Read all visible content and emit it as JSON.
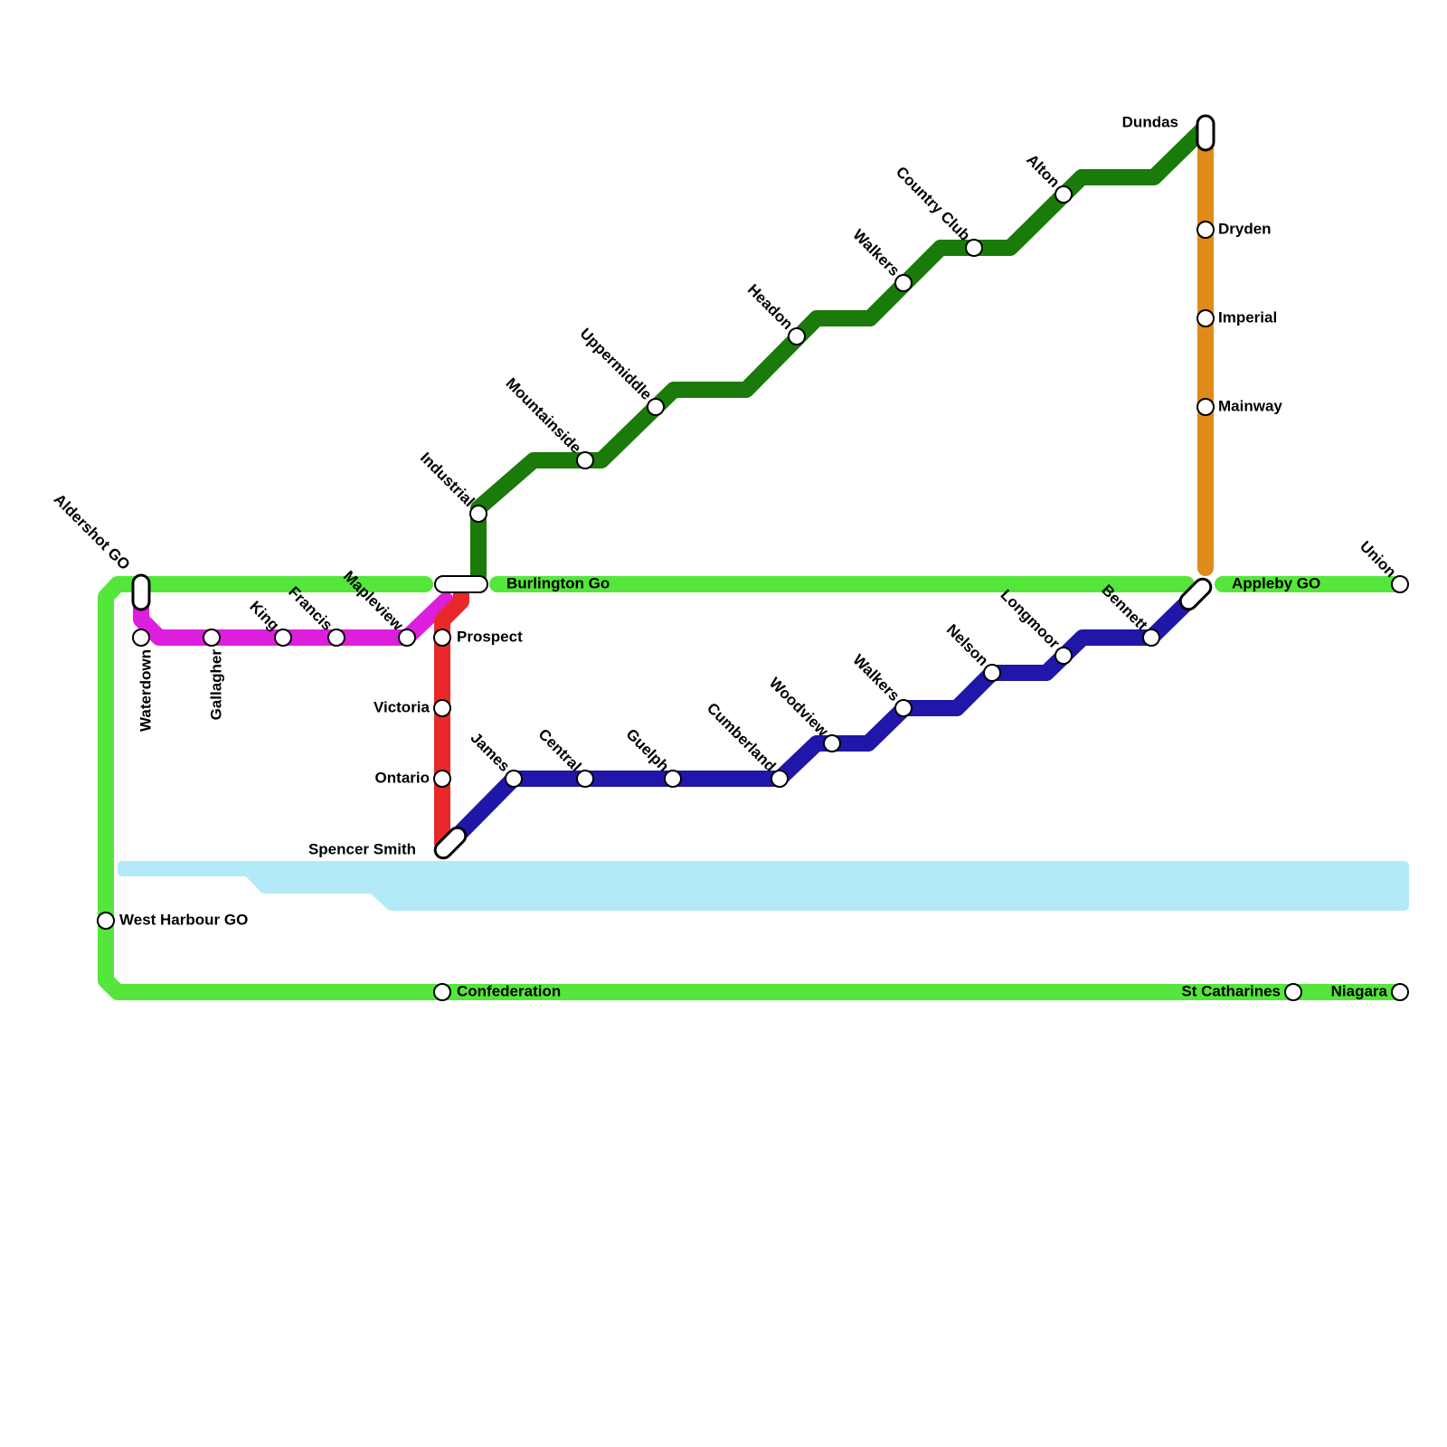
{
  "stations": [
    {
      "name": "Aldershot GO"
    },
    {
      "name": "Waterdown"
    },
    {
      "name": "Gallagher"
    },
    {
      "name": "King"
    },
    {
      "name": "Francis"
    },
    {
      "name": "Mapleview"
    },
    {
      "name": "Burlington Go"
    },
    {
      "name": "Prospect"
    },
    {
      "name": "Victoria"
    },
    {
      "name": "Ontario"
    },
    {
      "name": "Spencer Smith"
    },
    {
      "name": "Industrial"
    },
    {
      "name": "Mountainside"
    },
    {
      "name": "Uppermiddle"
    },
    {
      "name": "Headon"
    },
    {
      "name": "Walkers"
    },
    {
      "name": "Country Club"
    },
    {
      "name": "Alton"
    },
    {
      "name": "Dundas"
    },
    {
      "name": "Dryden"
    },
    {
      "name": "Imperial"
    },
    {
      "name": "Mainway"
    },
    {
      "name": "Appleby GO"
    },
    {
      "name": "Union"
    },
    {
      "name": "Bennett"
    },
    {
      "name": "Longmoor"
    },
    {
      "name": "Nelson"
    },
    {
      "name": "Walkers"
    },
    {
      "name": "Woodview"
    },
    {
      "name": "Cumberland"
    },
    {
      "name": "Guelph"
    },
    {
      "name": "Central"
    },
    {
      "name": "James"
    },
    {
      "name": "West Harbour GO"
    },
    {
      "name": "Confederation"
    },
    {
      "name": "St Catharines"
    },
    {
      "name": "Niagara"
    }
  ]
}
